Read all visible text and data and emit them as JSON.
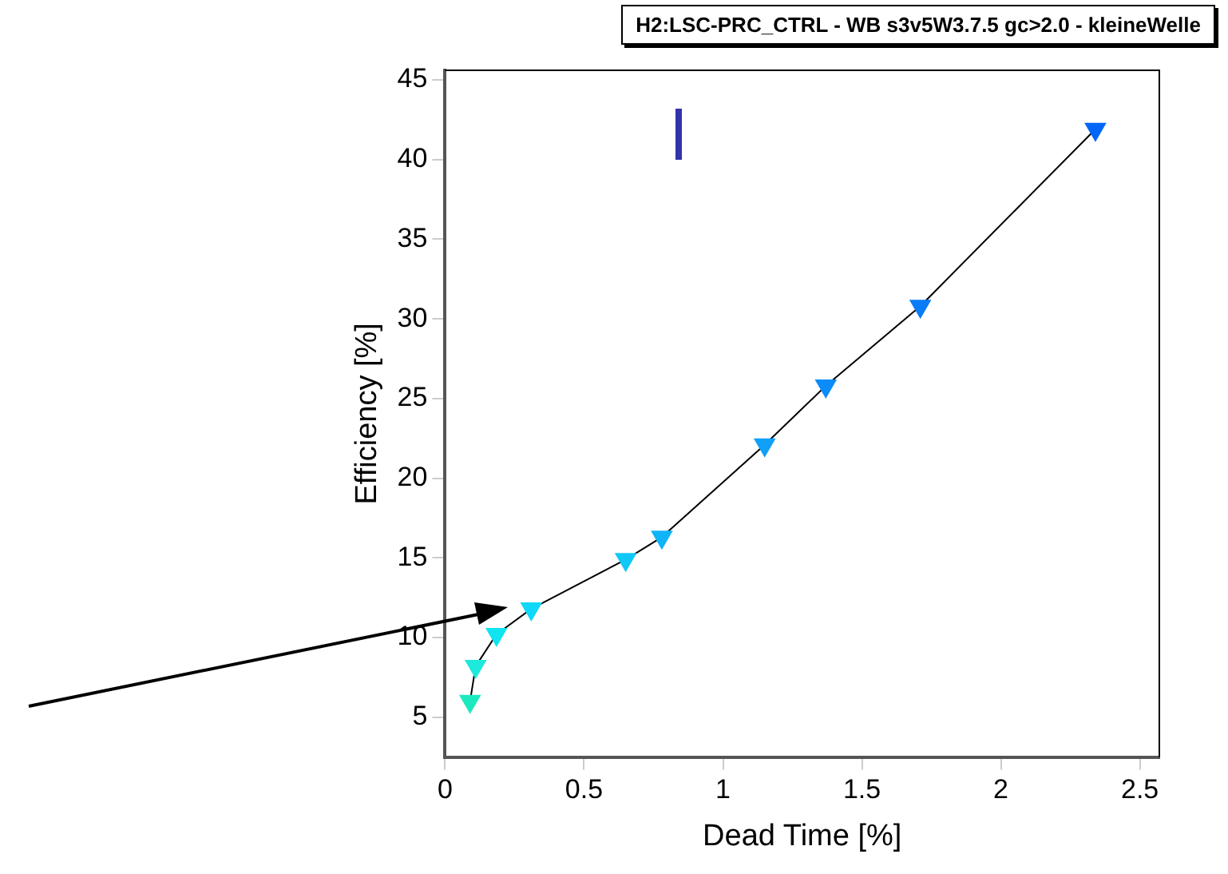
{
  "chart_data": {
    "type": "line",
    "title": "H2:LSC-PRC_CTRL - WB s3v5W3.7.5 gc>2.0 - kleineWelle",
    "xlabel": "Dead Time [%]",
    "ylabel": "Efficiency [%]",
    "x": [
      0.09,
      0.11,
      0.185,
      0.31,
      0.65,
      0.78,
      1.15,
      1.37,
      1.71,
      2.34
    ],
    "series": [
      {
        "color": "#000000",
        "values": [
          6.0,
          8.2,
          10.2,
          11.8,
          14.9,
          16.3,
          22.1,
          25.8,
          30.8,
          41.9
        ],
        "colors": [
          "#1de9c0",
          "#1de9dc",
          "#10e4f0",
          "#10d8f8",
          "#10c8f8",
          "#10b4f8",
          "#10a0f8",
          "#0c8cf8",
          "#0a7cf8",
          "#0066f8"
        ]
      }
    ],
    "xlim": [
      0,
      2.57
    ],
    "xticks": [
      0,
      0.5,
      1,
      1.5,
      2,
      2.5
    ],
    "ylim": [
      2.5,
      45.6
    ],
    "yticks": [
      5,
      10,
      15,
      20,
      25,
      30,
      35,
      40,
      45
    ],
    "marker": "triangle",
    "grid": false,
    "legend": false
  }
}
